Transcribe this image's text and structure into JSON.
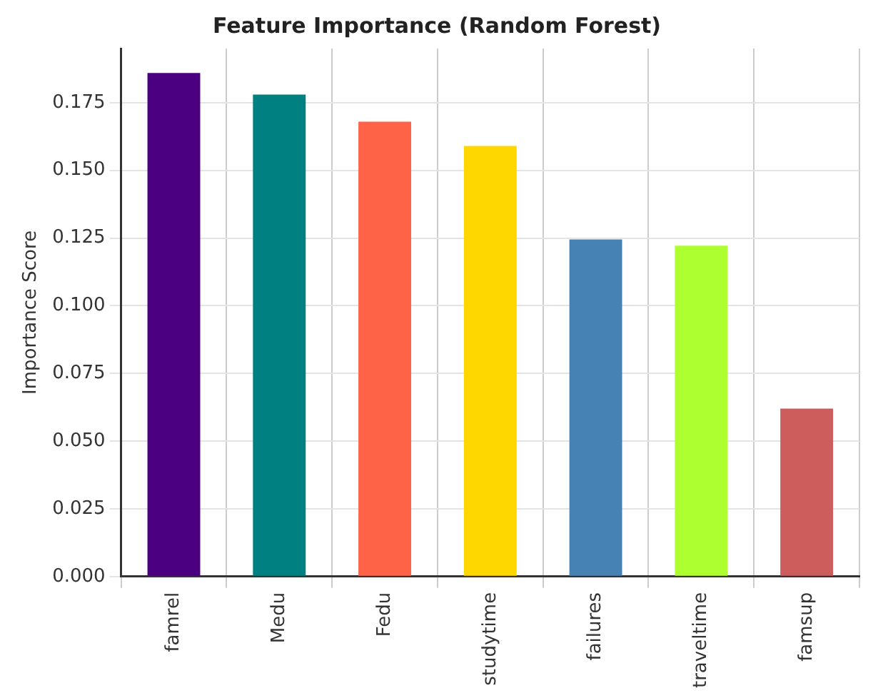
{
  "chart_data": {
    "type": "bar",
    "title": "Feature Importance (Random Forest)",
    "ylabel": "Importance Score",
    "categories": [
      "famrel",
      "Medu",
      "Fedu",
      "studytime",
      "failures",
      "traveltime",
      "famsup"
    ],
    "values": [
      0.186,
      0.178,
      0.168,
      0.159,
      0.1245,
      0.1222,
      0.062
    ],
    "colors": [
      "#4b0082",
      "#008080",
      "#ff6347",
      "#ffd700",
      "#4682b4",
      "#adff2f",
      "#cd5c5c"
    ],
    "ylim": [
      0,
      0.195
    ],
    "yticks": [
      {
        "value": 0,
        "label": "0.000"
      },
      {
        "value": 0.025,
        "label": "0.025"
      },
      {
        "value": 0.05,
        "label": "0.050"
      },
      {
        "value": 0.075,
        "label": "0.075"
      },
      {
        "value": 0.1,
        "label": "0.100"
      },
      {
        "value": 0.125,
        "label": "0.125"
      },
      {
        "value": 0.15,
        "label": "0.150"
      },
      {
        "value": 0.175,
        "label": "0.175"
      }
    ],
    "grid": true,
    "legend": false
  }
}
